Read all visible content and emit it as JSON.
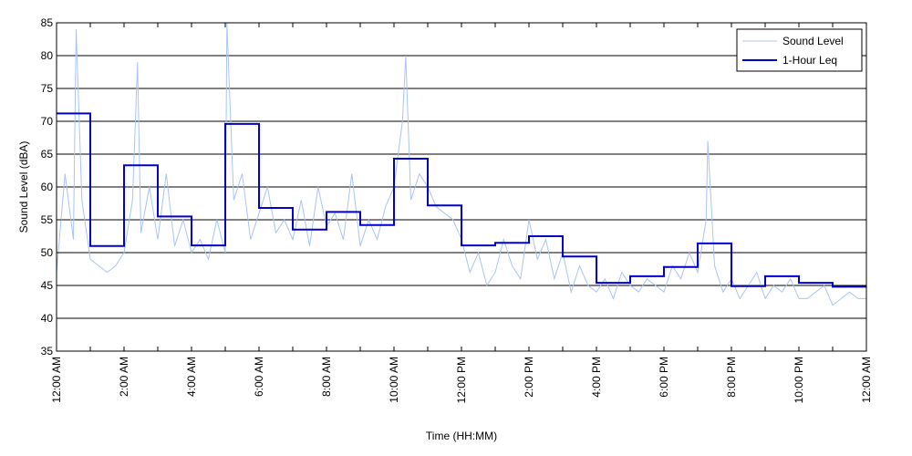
{
  "chart_data": {
    "type": "line",
    "title": "",
    "xlabel": "Time (HH:MM)",
    "ylabel": "Sound Level (dBA)",
    "xlim": [
      0,
      24
    ],
    "ylim": [
      35,
      85
    ],
    "yticks": [
      35,
      40,
      45,
      50,
      55,
      60,
      65,
      70,
      75,
      80,
      85
    ],
    "xticks": [
      {
        "value": 0,
        "label": "12:00 AM"
      },
      {
        "value": 2,
        "label": "2:00 AM"
      },
      {
        "value": 4,
        "label": "4:00 AM"
      },
      {
        "value": 6,
        "label": "6:00 AM"
      },
      {
        "value": 8,
        "label": "8:00 AM"
      },
      {
        "value": 10,
        "label": "10:00 AM"
      },
      {
        "value": 12,
        "label": "12:00 PM"
      },
      {
        "value": 14,
        "label": "2:00 PM"
      },
      {
        "value": 16,
        "label": "4:00 PM"
      },
      {
        "value": 18,
        "label": "6:00 PM"
      },
      {
        "value": 20,
        "label": "8:00 PM"
      },
      {
        "value": 22,
        "label": "10:00 PM"
      },
      {
        "value": 24,
        "label": "12:00 AM"
      }
    ],
    "grid": "horizontal",
    "legend_position": "top-right",
    "series": [
      {
        "name": "Sound Level",
        "color": "#a9c4f5",
        "x": [
          0,
          0.25,
          0.5,
          0.58,
          0.75,
          1,
          1.25,
          1.5,
          1.75,
          2,
          2.25,
          2.4,
          2.5,
          2.75,
          3,
          3.25,
          3.5,
          3.75,
          4,
          4.25,
          4.5,
          4.75,
          5,
          5.05,
          5.25,
          5.5,
          5.75,
          6,
          6.25,
          6.5,
          6.75,
          7,
          7.25,
          7.5,
          7.75,
          8,
          8.25,
          8.5,
          8.75,
          9,
          9.25,
          9.5,
          9.75,
          10,
          10.25,
          10.35,
          10.5,
          10.75,
          11,
          11.25,
          11.5,
          11.75,
          12,
          12.25,
          12.5,
          12.75,
          13,
          13.25,
          13.5,
          13.75,
          14,
          14.25,
          14.5,
          14.75,
          15,
          15.25,
          15.5,
          15.75,
          16,
          16.25,
          16.5,
          16.75,
          17,
          17.25,
          17.5,
          17.75,
          18,
          18.25,
          18.5,
          18.75,
          19,
          19.25,
          19.3,
          19.5,
          19.75,
          20,
          20.25,
          20.5,
          20.75,
          21,
          21.25,
          21.5,
          21.75,
          22,
          22.25,
          22.5,
          22.75,
          23,
          23.25,
          23.5,
          23.75,
          24
        ],
        "values": [
          47,
          62,
          52,
          84,
          58,
          49,
          48,
          47,
          48,
          50,
          58,
          79,
          53,
          60,
          52,
          62,
          51,
          55,
          50,
          52,
          49,
          55,
          50,
          85,
          58,
          62,
          52,
          56,
          60,
          53,
          55,
          52,
          58,
          51,
          60,
          54,
          56,
          52,
          62,
          51,
          55,
          52,
          57,
          60,
          70,
          80,
          58,
          62,
          60,
          57,
          56,
          55,
          52,
          47,
          50,
          45,
          47,
          52,
          48,
          46,
          55,
          49,
          52,
          46,
          50,
          44,
          48,
          45,
          44,
          46,
          43,
          47,
          45,
          44,
          46,
          45,
          44,
          48,
          46,
          50,
          47,
          55,
          67,
          48,
          44,
          46,
          43,
          45,
          47,
          43,
          45,
          44,
          46,
          43,
          43,
          44,
          45,
          42,
          43,
          44,
          43,
          43
        ]
      },
      {
        "name": "1-Hour Leq",
        "color": "#0000cc",
        "type": "step",
        "x": [
          0,
          1,
          2,
          3,
          4,
          5,
          6,
          7,
          8,
          9,
          10,
          11,
          12,
          13,
          14,
          15,
          16,
          17,
          18,
          19,
          20,
          21,
          22,
          23
        ],
        "values": [
          71.2,
          51.0,
          63.3,
          55.5,
          51.1,
          69.6,
          56.8,
          53.5,
          56.2,
          54.2,
          64.3,
          57.2,
          51.1,
          51.5,
          52.5,
          49.4,
          45.4,
          46.4,
          47.8,
          51.4,
          44.9,
          46.4,
          45.4,
          44.8
        ]
      }
    ]
  }
}
